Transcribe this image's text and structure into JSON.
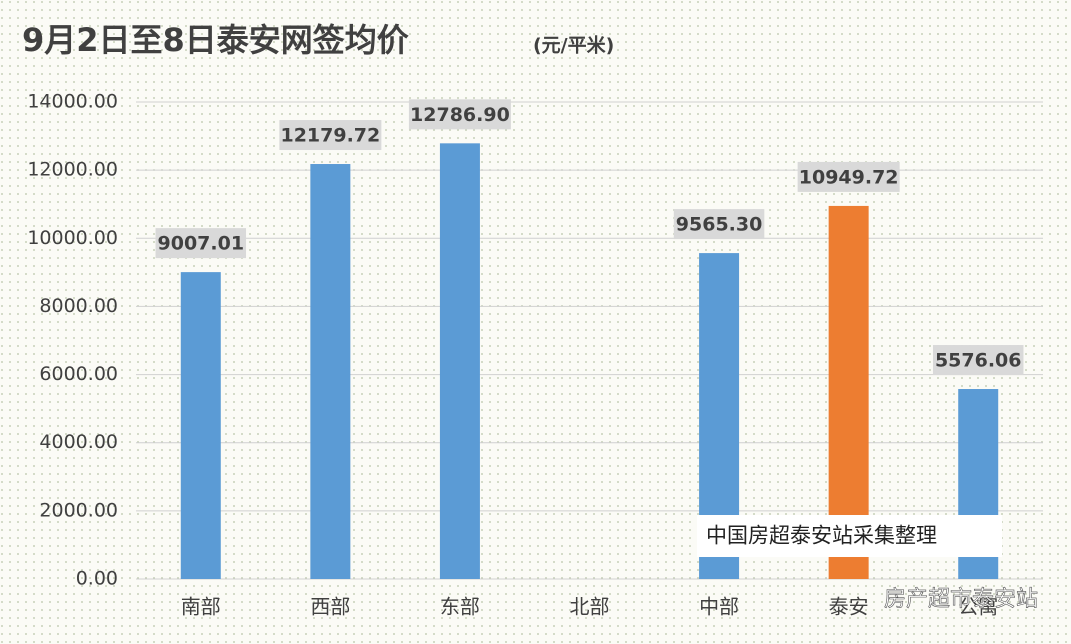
{
  "chart_data": {
    "type": "bar",
    "title": "9月2日至8日泰安网签均价",
    "subtitle": "(元/平米)",
    "categories": [
      "南部",
      "西部",
      "东部",
      "北部",
      "中部",
      "泰安",
      "公寓"
    ],
    "values": [
      9007.01,
      12179.72,
      12786.9,
      null,
      9565.3,
      10949.72,
      5576.06
    ],
    "value_labels": [
      "9007.01",
      "12179.72",
      "12786.90",
      null,
      "9565.30",
      "10949.72",
      "5576.06"
    ],
    "colors": [
      "#5b9bd5",
      "#5b9bd5",
      "#5b9bd5",
      null,
      "#5b9bd5",
      "#ed7d31",
      "#5b9bd5"
    ],
    "ylim": [
      0,
      14000
    ],
    "yticks": [
      {
        "value": 0,
        "label": "0.00"
      },
      {
        "value": 2000,
        "label": "2000.00"
      },
      {
        "value": 4000,
        "label": "4000.00"
      },
      {
        "value": 6000,
        "label": "6000.00"
      },
      {
        "value": 8000,
        "label": "8000.00"
      },
      {
        "value": 10000,
        "label": "10000.00"
      },
      {
        "value": 12000,
        "label": "12000.00"
      },
      {
        "value": 14000,
        "label": "14000.00"
      }
    ],
    "grid": true,
    "annotations": [
      "中国房超泰安站采集整理",
      "房产超市泰安站"
    ]
  }
}
